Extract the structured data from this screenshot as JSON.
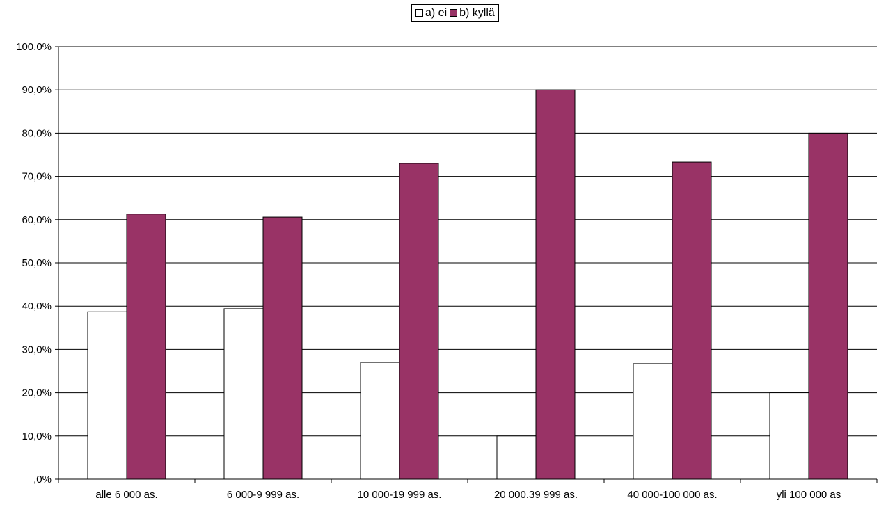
{
  "chart_data": {
    "type": "bar",
    "categories": [
      "alle 6 000 as.",
      "6 000-9 999 as.",
      "10 000-19 999 as.",
      "20 000.39 999 as.",
      "40 000-100 000 as.",
      "yli 100 000 as"
    ],
    "series": [
      {
        "name": "a) ei",
        "color": "#ffffff",
        "values": [
          38.7,
          39.4,
          27.0,
          10.0,
          26.7,
          20.0
        ]
      },
      {
        "name": "b) kyllä",
        "color": "#993366",
        "values": [
          61.3,
          60.6,
          73.0,
          90.0,
          73.3,
          80.0
        ]
      }
    ],
    "yticks": [
      ",0%",
      "10,0%",
      "20,0%",
      "30,0%",
      "40,0%",
      "50,0%",
      "60,0%",
      "70,0%",
      "80,0%",
      "90,0%",
      "100,0%"
    ],
    "ylim": [
      0,
      100
    ],
    "grid": true,
    "legend": "top-center"
  }
}
